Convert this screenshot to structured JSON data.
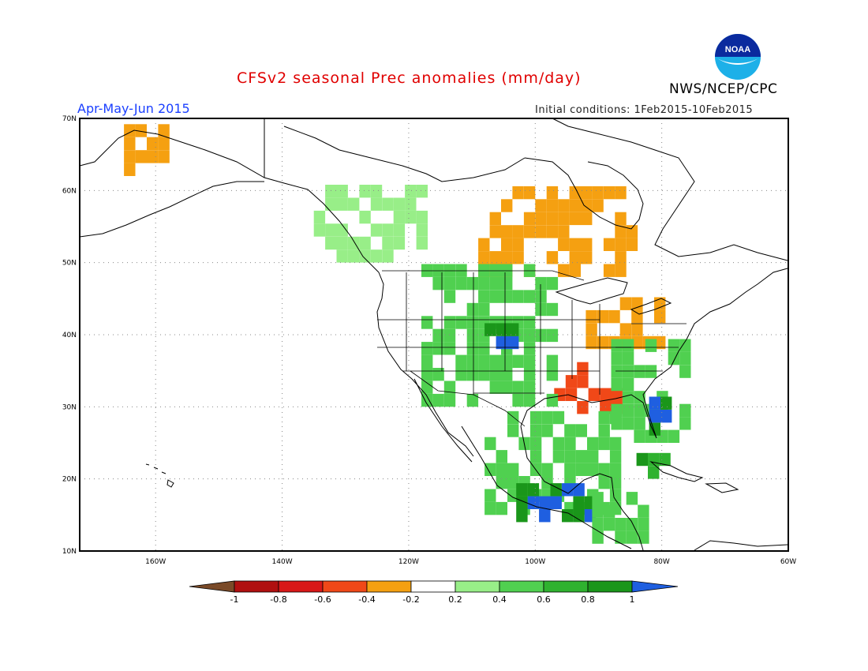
{
  "header": {
    "title": "CFSv2 seasonal Prec anomalies (mm/day)",
    "season": "Apr-May-Jun 2015",
    "initial_conditions": "Initial conditions: 1Feb2015-10Feb2015",
    "organization": "NWS/NCEP/CPC",
    "logo_text": "NOAA"
  },
  "map": {
    "lon_range": [
      -172,
      -60
    ],
    "lat_range": [
      10,
      70
    ],
    "lon_ticks": [
      {
        "value": -160,
        "label": "160W"
      },
      {
        "value": -140,
        "label": "140W"
      },
      {
        "value": -120,
        "label": "120W"
      },
      {
        "value": -100,
        "label": "100W"
      },
      {
        "value": -80,
        "label": "80W"
      },
      {
        "value": -60,
        "label": "60W"
      }
    ],
    "lat_ticks": [
      {
        "value": 70,
        "label": "70N"
      },
      {
        "value": 60,
        "label": "60N"
      },
      {
        "value": 50,
        "label": "50N"
      },
      {
        "value": 40,
        "label": "40N"
      },
      {
        "value": 30,
        "label": "30N"
      },
      {
        "value": 20,
        "label": "20N"
      },
      {
        "value": 10,
        "label": "10N"
      }
    ],
    "grid": "dotted",
    "anomaly_regions": [
      {
        "name": "central canada",
        "lon": [
          -109,
          -85
        ],
        "lat": [
          48,
          60
        ],
        "level": -0.3
      },
      {
        "name": "alaska west",
        "lon": [
          -165,
          -158
        ],
        "lat": [
          62,
          69
        ],
        "level": -0.3
      },
      {
        "name": "texas arkansas",
        "lon": [
          -97,
          -88
        ],
        "lat": [
          29,
          35
        ],
        "level": -0.5
      },
      {
        "name": "ohio valley",
        "lon": [
          -92,
          -80
        ],
        "lat": [
          38,
          45
        ],
        "level": -0.3
      },
      {
        "name": "rockies plains",
        "lon": [
          -118,
          -98
        ],
        "lat": [
          30,
          48
        ],
        "level": 0.5
      },
      {
        "name": "colorado core",
        "lon": [
          -108,
          -103
        ],
        "lat": [
          38,
          41
        ],
        "level": 1.0
      },
      {
        "name": "southeast",
        "lon": [
          -88,
          -76
        ],
        "lat": [
          25,
          39
        ],
        "level": 0.5
      },
      {
        "name": "florida",
        "lon": [
          -82,
          -80
        ],
        "lat": [
          26,
          31
        ],
        "level": 1.0
      },
      {
        "name": "mexico",
        "lon": [
          -108,
          -88
        ],
        "lat": [
          15,
          28
        ],
        "level": 0.5
      },
      {
        "name": "mexico south",
        "lon": [
          -103,
          -92
        ],
        "lat": [
          14,
          19
        ],
        "level": 1.0
      },
      {
        "name": "bc coast",
        "lon": [
          -135,
          -118
        ],
        "lat": [
          50,
          60
        ],
        "level": 0.3
      },
      {
        "name": "cuba",
        "lon": [
          -84,
          -78
        ],
        "lat": [
          20,
          23
        ],
        "level": 0.8
      },
      {
        "name": "central america",
        "lon": [
          -91,
          -83
        ],
        "lat": [
          11,
          17
        ],
        "level": 0.5
      }
    ]
  },
  "colorbar": {
    "labels": [
      "-1",
      "-0.8",
      "-0.6",
      "-0.4",
      "-0.2",
      "0.2",
      "0.4",
      "0.6",
      "0.8",
      "1"
    ],
    "colors": [
      "#7a4a28",
      "#b01010",
      "#d81818",
      "#f04818",
      "#f5a011",
      "#ffffff",
      "#98ee88",
      "#50d050",
      "#2fb22f",
      "#1a961a",
      "#1f5fe0"
    ]
  }
}
